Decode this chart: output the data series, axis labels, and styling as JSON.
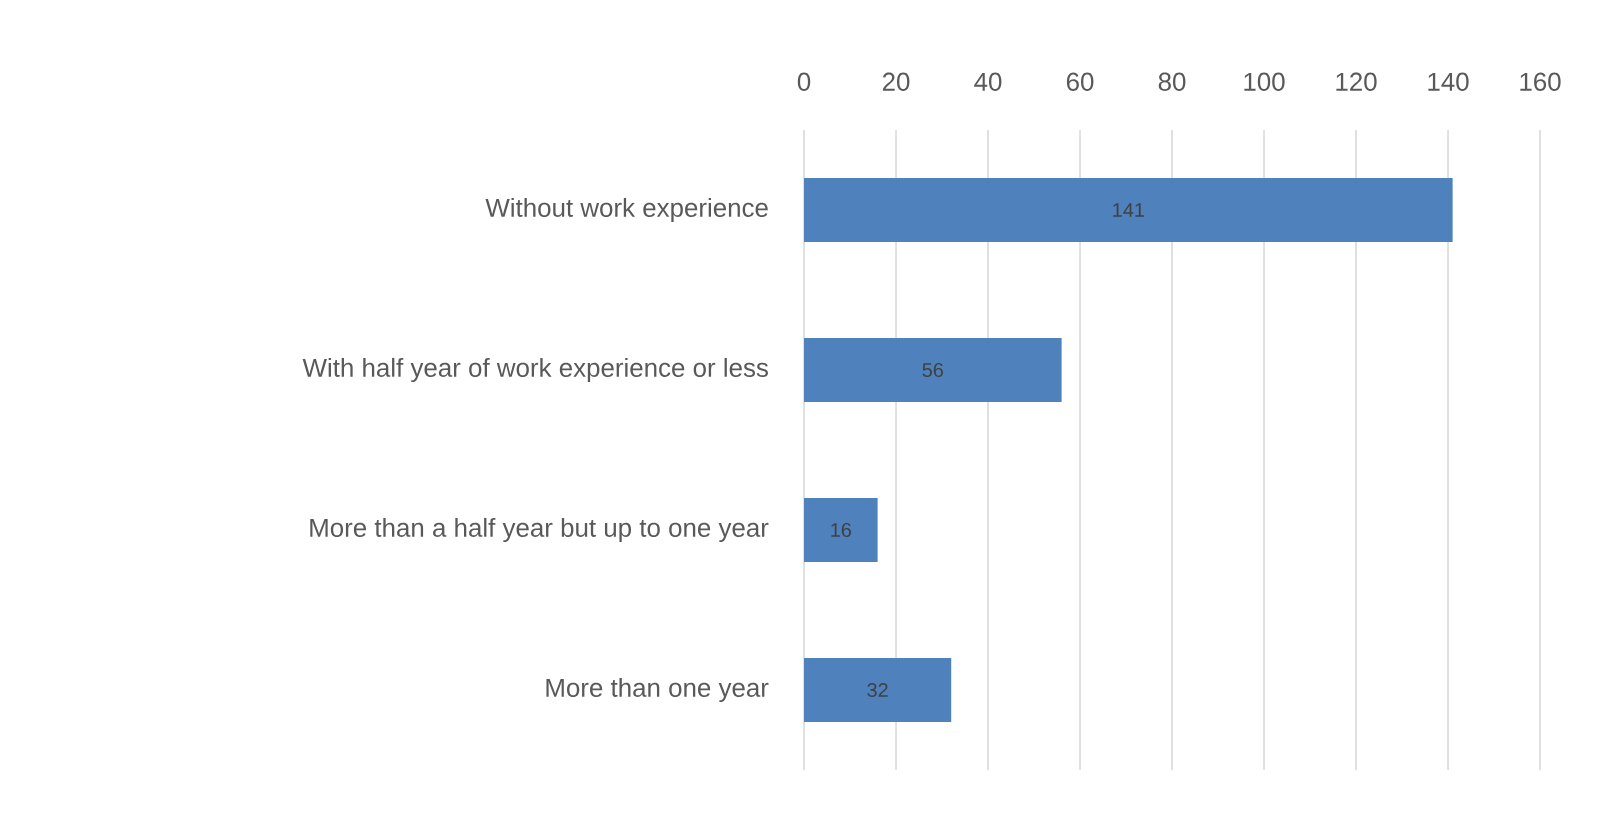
{
  "chart_data": {
    "type": "bar",
    "orientation": "horizontal",
    "categories": [
      "Without work experience",
      "With half year of work experience or less",
      "More than a half year but up to one year",
      "More than one year"
    ],
    "values": [
      141,
      56,
      16,
      32
    ],
    "color": "#4f81bd",
    "xlim": [
      0,
      160
    ],
    "xticks": [
      0,
      20,
      40,
      60,
      80,
      100,
      120,
      140,
      160
    ],
    "grid": "x",
    "data_labels": true
  }
}
